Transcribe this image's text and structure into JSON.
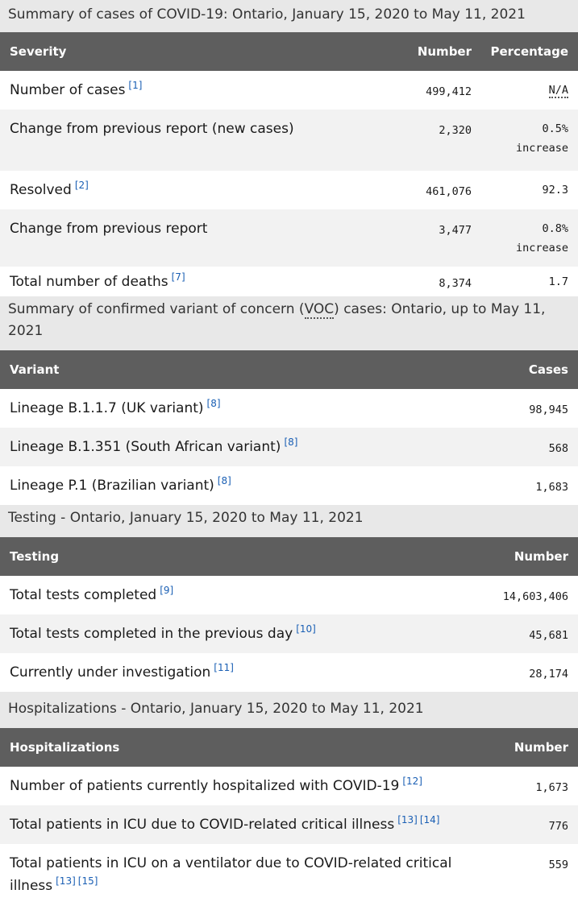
{
  "cases_table": {
    "caption": "Summary of cases of COVID-19: Ontario, January 15, 2020 to May 11, 2021",
    "headers": {
      "severity": "Severity",
      "number": "Number",
      "percentage": "Percentage"
    },
    "rows": [
      {
        "label": "Number of cases",
        "ref": "[1]",
        "number": "499,412",
        "pct_line1": "N/A",
        "pct_line2": ""
      },
      {
        "label": "Change from previous report (new cases)",
        "ref": "",
        "number": "2,320",
        "pct_line1": "0.5%",
        "pct_line2": "increase"
      },
      {
        "label": "Resolved",
        "ref": "[2]",
        "number": "461,076",
        "pct_line1": "92.3",
        "pct_line2": ""
      },
      {
        "label": "Change from previous report",
        "ref": "",
        "number": "3,477",
        "pct_line1": "0.8%",
        "pct_line2": "increase"
      },
      {
        "label": "Total number of deaths",
        "ref": "[7]",
        "number": "8,374",
        "pct_line1": "1.7",
        "pct_line2": ""
      }
    ]
  },
  "variant_table": {
    "caption_before": "Summary of confirmed variant of concern (",
    "caption_abbr": "VOC",
    "caption_after": ") cases: Ontario, up to May 11, 2021",
    "headers": {
      "variant": "Variant",
      "cases": "Cases"
    },
    "rows": [
      {
        "label": "Lineage B.1.1.7 (UK variant)",
        "ref": "[8]",
        "value": "98,945"
      },
      {
        "label": "Lineage B.1.351 (South African variant)",
        "ref": "[8]",
        "value": "568"
      },
      {
        "label": "Lineage P.1 (Brazilian variant)",
        "ref": "[8]",
        "value": "1,683"
      }
    ]
  },
  "testing_table": {
    "caption": "Testing - Ontario, January 15, 2020 to May 11, 2021",
    "headers": {
      "testing": "Testing",
      "number": "Number"
    },
    "rows": [
      {
        "label": "Total tests completed",
        "ref": "[9]",
        "value": "14,603,406"
      },
      {
        "label": "Total tests completed in the previous day",
        "ref": "[10]",
        "value": "45,681"
      },
      {
        "label": "Currently under investigation",
        "ref": "[11]",
        "value": "28,174"
      }
    ]
  },
  "hosp_table": {
    "caption": "Hospitalizations - Ontario, January 15, 2020 to May 11, 2021",
    "headers": {
      "hospitalizations": "Hospitalizations",
      "number": "Number"
    },
    "rows": [
      {
        "label": "Number of patients currently hospitalized with COVID-19",
        "ref": "[12]",
        "ref2": "",
        "value": "1,673"
      },
      {
        "label": "Total patients in ICU due to COVID-related critical illness",
        "ref": "[13]",
        "ref2": "[14]",
        "value": "776"
      },
      {
        "label": "Total patients in ICU on a ventilator due to COVID-related critical illness",
        "ref": "[13]",
        "ref2": "[15]",
        "value": "559"
      }
    ]
  },
  "colors": {
    "header_bg": "#5e5e5e",
    "caption_bg": "#e8e8e8",
    "stripe_bg": "#f2f2f2",
    "link": "#1a5fb4"
  }
}
